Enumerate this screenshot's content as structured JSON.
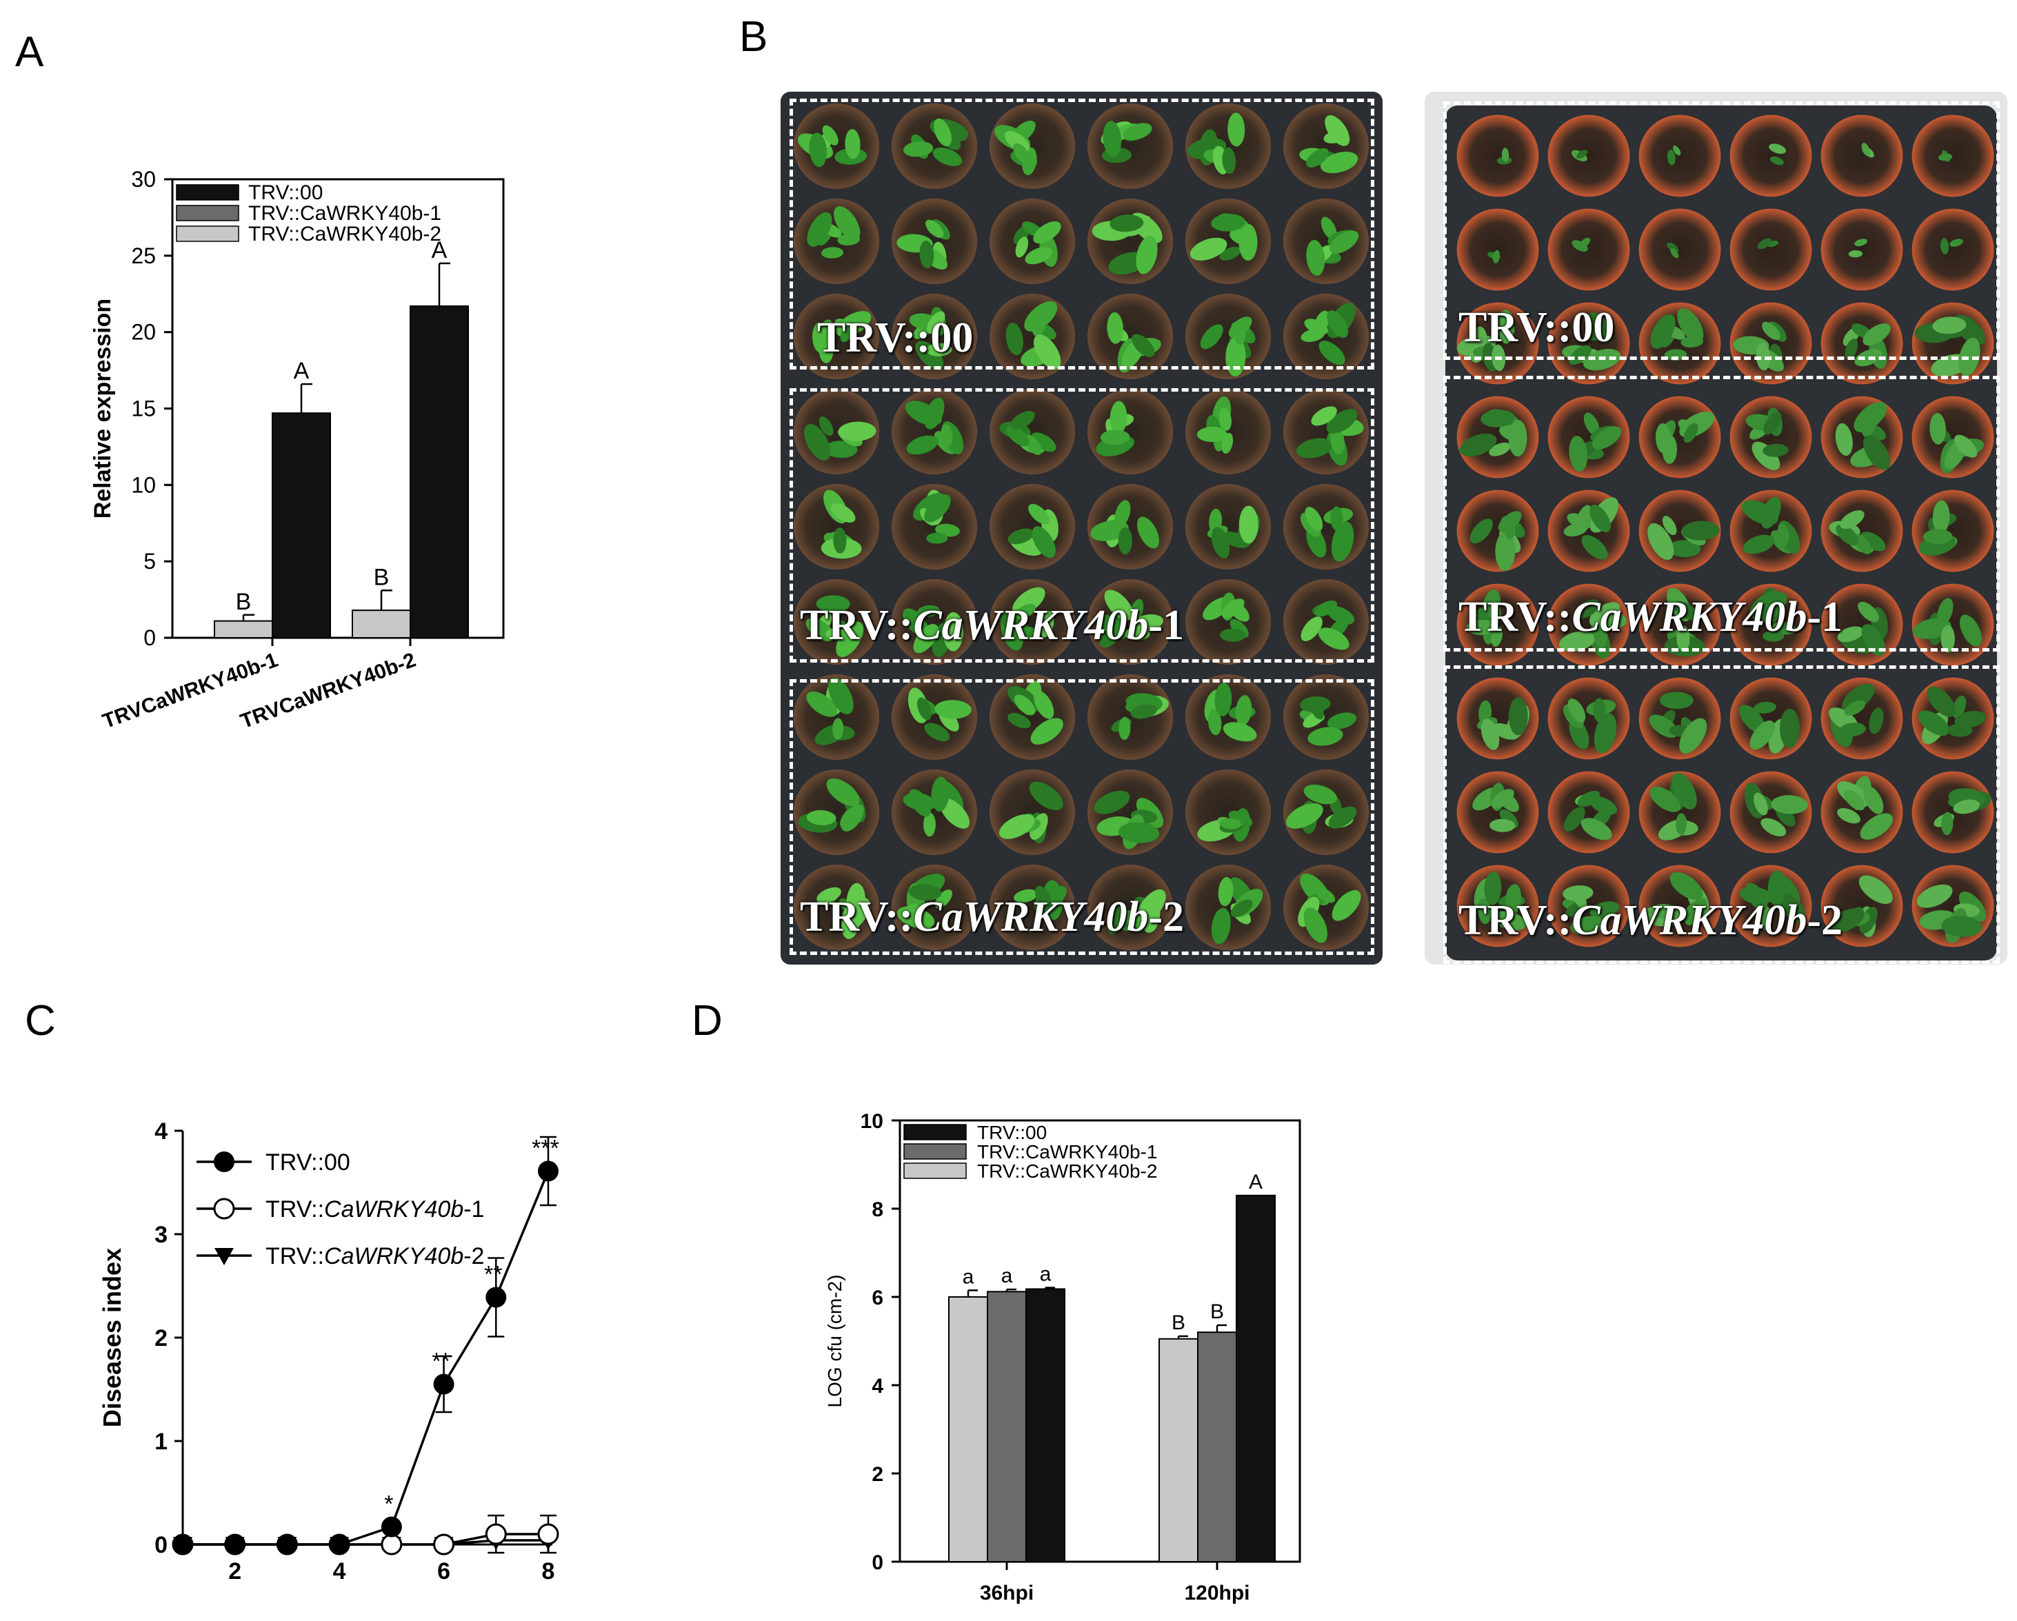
{
  "panels": {
    "A": "A",
    "B": "B",
    "C": "C",
    "D": "D"
  },
  "chart_data": [
    {
      "id": "A",
      "type": "bar",
      "ylabel": "Relative expression",
      "ylim": [
        0,
        30
      ],
      "yticks": [
        0,
        5,
        10,
        15,
        20,
        25,
        30
      ],
      "categories": [
        "TRVCaWRKY40b-1",
        "TRVCaWRKY40b-2"
      ],
      "legend_position": "top-left",
      "series": [
        {
          "name": "TRV::00",
          "color": "#111111",
          "values": [
            14.7,
            21.7
          ],
          "errors": [
            1.9,
            2.8
          ],
          "letters": [
            "A",
            "A"
          ]
        },
        {
          "name": "TRV::CaWRKY40b-1",
          "color": "#6b6b6b",
          "values": [
            null,
            null
          ],
          "errors": [
            null,
            null
          ],
          "letters": [
            "",
            ""
          ]
        },
        {
          "name": "TRV::CaWRKY40b-2",
          "color": "#c8c8c8",
          "values": [
            1.1,
            1.8
          ],
          "errors": [
            0.4,
            1.3
          ],
          "letters": [
            "B",
            "B"
          ]
        }
      ]
    },
    {
      "id": "C",
      "type": "line",
      "ylabel": "Diseases index",
      "xlim": [
        1,
        8
      ],
      "ylim": [
        0,
        4
      ],
      "xticks": [
        2,
        4,
        6,
        8
      ],
      "yticks": [
        0,
        1,
        2,
        3,
        4
      ],
      "legend_position": "top-left",
      "x": [
        1,
        2,
        3,
        4,
        5,
        6,
        7,
        8
      ],
      "series": [
        {
          "name": "TRV::",
          "name_italic": "CaWRKY40b",
          "name_suffix": "",
          "full_name": "TRV::00",
          "marker": "filled-circle",
          "values": [
            0,
            0,
            0,
            0,
            0.17,
            1.55,
            2.39,
            3.61
          ],
          "errors": [
            0,
            0,
            0,
            0,
            0,
            0.27,
            0.38,
            0.33
          ]
        },
        {
          "name": "TRV::",
          "name_italic": "CaWRKY40b",
          "name_suffix": "-1",
          "full_name": "TRV::CaWRKY40b-1",
          "marker": "open-circle",
          "values": [
            0,
            0,
            0,
            0,
            0,
            0,
            0.1,
            0.1
          ],
          "errors": [
            0,
            0,
            0,
            0,
            0,
            0,
            0.18,
            0.18
          ]
        },
        {
          "name": "TRV::",
          "name_italic": "CaWRKY40b",
          "name_suffix": "-2",
          "full_name": "TRV::CaWRKY40b-2",
          "marker": "filled-triangle-down",
          "values": [
            0,
            0,
            0,
            0,
            0,
            0,
            0.04,
            0.04
          ],
          "errors": [
            0,
            0,
            0,
            0,
            0,
            0,
            0,
            0
          ]
        }
      ],
      "annotations": [
        {
          "x": 5,
          "y": 0.17,
          "text": "*"
        },
        {
          "x": 6,
          "y": 1.55,
          "text": "**"
        },
        {
          "x": 7,
          "y": 2.39,
          "text": "**"
        },
        {
          "x": 8,
          "y": 3.61,
          "text": "***"
        }
      ]
    },
    {
      "id": "D",
      "type": "bar",
      "ylabel": "LOG cfu (cm-2)",
      "ylim": [
        0,
        10
      ],
      "yticks": [
        0,
        2,
        4,
        6,
        8,
        10
      ],
      "categories": [
        "36hpi",
        "120hpi"
      ],
      "legend_position": "top-left",
      "series": [
        {
          "name": "TRV::CaWRKY40b-2",
          "color": "#c8c8c8",
          "values": [
            6.0,
            5.05
          ],
          "errors": [
            0.15,
            0.06
          ],
          "letters": [
            "a",
            "B"
          ]
        },
        {
          "name": "TRV::CaWRKY40b-1",
          "color": "#6b6b6b",
          "values": [
            6.12,
            5.2
          ],
          "errors": [
            0.05,
            0.16
          ],
          "letters": [
            "a",
            "B"
          ]
        },
        {
          "name": "TRV::00",
          "color": "#111111",
          "values": [
            6.18,
            8.3
          ],
          "errors": [
            0.03,
            0.0
          ],
          "letters": [
            "a",
            "A"
          ]
        }
      ],
      "legend_order": [
        "TRV::00",
        "TRV::CaWRKY40b-1",
        "TRV::CaWRKY40b-2"
      ]
    }
  ],
  "photo": {
    "left_trays": [
      "TRV::00",
      "TRV::CaWRKY40b-1",
      "TRV::CaWRKY40b-2"
    ],
    "right_trays": [
      "TRV::00",
      "TRV::CaWRKY40b-1",
      "TRV::CaWRKY40b-2"
    ],
    "tray_prefix": "TRV::",
    "tray_italic": [
      "00",
      "CaWRKY40b",
      "CaWRKY40b"
    ],
    "tray_suffix": [
      "",
      "-1",
      "-2"
    ]
  }
}
